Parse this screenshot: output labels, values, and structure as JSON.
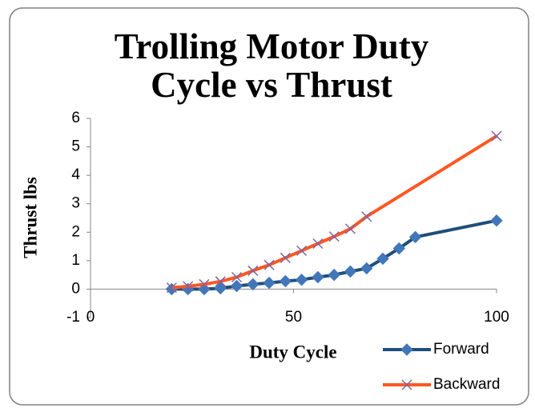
{
  "chart_data": {
    "type": "line",
    "title": "Trolling Motor Duty Cycle vs Thrust",
    "x_label": "Duty Cycle",
    "y_label": "Thrust lbs",
    "xlim": [
      0,
      100
    ],
    "xticks": [
      0,
      50,
      100
    ],
    "ylim": [
      -1,
      6
    ],
    "yticks": [
      -1,
      0,
      1,
      2,
      3,
      4,
      5,
      6
    ],
    "grid": false,
    "legend": "bottom-right",
    "series": [
      {
        "name": "Forward",
        "color": "#1f4e79",
        "marker": "diamond",
        "marker_color": "#4177b9",
        "x": [
          20,
          24,
          28,
          32,
          36,
          40,
          44,
          48,
          52,
          56,
          60,
          64,
          68,
          72,
          76,
          80,
          100
        ],
        "values": [
          0,
          0,
          0,
          0.03,
          0.11,
          0.17,
          0.22,
          0.28,
          0.33,
          0.42,
          0.5,
          0.62,
          0.73,
          1.07,
          1.43,
          1.83,
          2.41
        ]
      },
      {
        "name": "Backward",
        "color": "#ff5722",
        "marker": "x",
        "marker_color": "#8064a2",
        "x": [
          20,
          24,
          28,
          32,
          36,
          40,
          44,
          48,
          52,
          56,
          60,
          64,
          68,
          100
        ],
        "values": [
          0.05,
          0.1,
          0.17,
          0.27,
          0.42,
          0.65,
          0.85,
          1.1,
          1.35,
          1.6,
          1.85,
          2.12,
          2.55,
          5.38
        ]
      }
    ]
  }
}
